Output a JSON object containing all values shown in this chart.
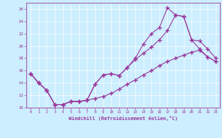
{
  "xlabel": "Windchill (Refroidissement éolien,°C)",
  "ylabel": "",
  "bg_color": "#cceeff",
  "line_color": "#993399",
  "xlim": [
    -0.5,
    23.5
  ],
  "ylim": [
    10,
    27
  ],
  "xticks": [
    0,
    1,
    2,
    3,
    4,
    5,
    6,
    7,
    8,
    9,
    10,
    11,
    12,
    13,
    14,
    15,
    16,
    17,
    18,
    19,
    20,
    21,
    22,
    23
  ],
  "yticks": [
    10,
    12,
    14,
    16,
    18,
    20,
    22,
    24,
    26
  ],
  "line1_x": [
    0,
    1,
    2,
    3,
    4,
    5,
    6,
    7,
    8,
    9,
    10,
    11,
    12,
    13,
    14,
    15,
    16,
    17,
    18,
    19,
    20,
    21,
    22,
    23
  ],
  "line1_y": [
    15.5,
    14.0,
    12.8,
    10.5,
    10.5,
    11.0,
    11.0,
    11.2,
    13.8,
    15.3,
    15.5,
    15.2,
    16.5,
    18.0,
    20.3,
    22.0,
    23.0,
    26.2,
    25.0,
    24.8,
    21.0,
    19.5,
    18.2,
    17.5
  ],
  "line2_x": [
    0,
    1,
    2,
    3,
    4,
    5,
    6,
    7,
    8,
    9,
    10,
    11,
    12,
    13,
    14,
    15,
    16,
    17,
    18,
    19,
    20,
    21,
    22,
    23
  ],
  "line2_y": [
    15.5,
    14.0,
    12.8,
    10.5,
    10.5,
    11.0,
    11.0,
    11.2,
    13.8,
    15.3,
    15.5,
    15.2,
    16.5,
    17.8,
    18.8,
    19.8,
    21.0,
    22.5,
    25.0,
    24.8,
    21.0,
    20.8,
    19.5,
    18.0
  ],
  "line3_x": [
    0,
    1,
    2,
    3,
    4,
    5,
    6,
    7,
    8,
    9,
    10,
    11,
    12,
    13,
    14,
    15,
    16,
    17,
    18,
    19,
    20,
    21,
    22,
    23
  ],
  "line3_y": [
    15.5,
    14.0,
    12.8,
    10.5,
    10.5,
    11.0,
    11.0,
    11.2,
    11.5,
    11.8,
    12.3,
    13.0,
    13.8,
    14.5,
    15.3,
    16.0,
    16.8,
    17.5,
    18.0,
    18.5,
    19.0,
    19.3,
    18.2,
    17.5
  ]
}
